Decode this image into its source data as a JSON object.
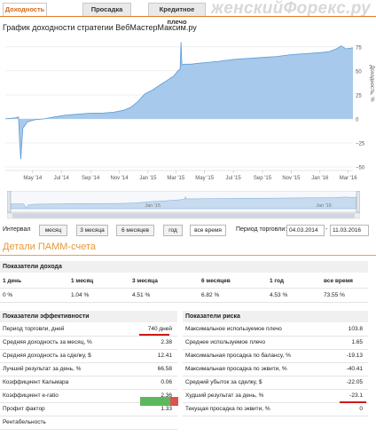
{
  "tabs": [
    {
      "label": "Доходность",
      "active": true
    },
    {
      "label": "Просадка",
      "active": false
    },
    {
      "label": "Кредитное плечо",
      "active": false
    }
  ],
  "watermark": "женскийФорекс.ру",
  "chart": {
    "title": "График доходности стратегии ВебМастерМаксим.ру",
    "y_axis_label": "Доходность, %",
    "y_ticks": [
      "75",
      "50",
      "25",
      "0",
      "−25",
      "−50"
    ],
    "x_ticks": [
      "May '14",
      "Jul '14",
      "Sep '14",
      "Nov '14",
      "Jan '15",
      "Mar '15",
      "May '15",
      "Jul '15",
      "Sep '15",
      "Nov '15",
      "Jan '16",
      "Mar '16"
    ],
    "navigator_ticks": [
      "Jan '15",
      "Jan '16"
    ],
    "fill_color": "#9cc3ea",
    "line_color": "#5b9bd5"
  },
  "chart_data": {
    "type": "area",
    "title": "График доходности стратегии ВебМастерМаксим.ру",
    "xlabel": "",
    "ylabel": "Доходность, %",
    "ylim": [
      -50,
      85
    ],
    "xlim": [
      "2014-03-04",
      "2016-03-11"
    ],
    "grid": true,
    "x": [
      "2014-03-04",
      "2014-03-25",
      "2014-04-01",
      "2014-04-04",
      "2014-04-06",
      "2014-04-10",
      "2014-04-20",
      "2014-05-05",
      "2014-05-25",
      "2014-06-15",
      "2014-07-10",
      "2014-08-05",
      "2014-09-01",
      "2014-09-25",
      "2014-10-20",
      "2014-11-10",
      "2014-11-25",
      "2014-12-10",
      "2014-12-25",
      "2015-01-10",
      "2015-01-25",
      "2015-02-10",
      "2015-02-25",
      "2015-03-05",
      "2015-03-10",
      "2015-03-12",
      "2015-03-14",
      "2015-03-18",
      "2015-04-01",
      "2015-04-20",
      "2015-05-10",
      "2015-06-01",
      "2015-07-01",
      "2015-08-01",
      "2015-09-01",
      "2015-10-01",
      "2015-11-01",
      "2015-12-01",
      "2016-01-01",
      "2016-01-20",
      "2016-02-05",
      "2016-02-15",
      "2016-02-25",
      "2016-03-11"
    ],
    "series": [
      {
        "values": [
          0,
          1,
          2,
          -30,
          -42,
          -10,
          -3,
          -1,
          0,
          2,
          4,
          5,
          6,
          6,
          7,
          9,
          12,
          18,
          26,
          30,
          35,
          40,
          45,
          50,
          52,
          80,
          56,
          57,
          57,
          58,
          59,
          60,
          62,
          63,
          64,
          65,
          67,
          68,
          69,
          70,
          73,
          76,
          73,
          74
        ]
      }
    ]
  },
  "interval": {
    "label": "Интервал",
    "buttons": [
      {
        "label": "месяц",
        "selected": false
      },
      {
        "label": "3 месяца",
        "selected": false
      },
      {
        "label": "6 месяцев",
        "selected": false
      },
      {
        "label": "год",
        "selected": false
      },
      {
        "label": "все время",
        "selected": true
      }
    ],
    "period_label": "Период торговли:",
    "date_from": "04.03.2014",
    "date_to": "11.03.2016",
    "separator": "-"
  },
  "pamm_title": "Детали ПАММ-счета",
  "yield": {
    "header": "Показатели дохода",
    "columns": [
      "1 день",
      "1 месяц",
      "3 месяца",
      "6 месяцев",
      "1 год",
      "все время"
    ],
    "values": [
      "0 %",
      "1.04 %",
      "4.51 %",
      "6.82 %",
      "4.53 %",
      "73.55 %"
    ]
  },
  "efficiency": {
    "header": "Показатели эффективности",
    "rows": [
      {
        "label": "Период торговли, дней",
        "value": "740 дней"
      },
      {
        "label": "Средняя доходность за месяц, %",
        "value": "2.38"
      },
      {
        "label": "Средняя доходность за сделку, $",
        "value": "12.41"
      },
      {
        "label": "Лучший результат за день, %",
        "value": "66.58"
      },
      {
        "label": "Коэффициент Кальмара",
        "value": "0.06"
      },
      {
        "label": "Коэффициент e-ratio",
        "value": "2.36"
      },
      {
        "label": "Профит фактор",
        "value": "1.33"
      },
      {
        "label": "Рентабельность",
        "value": ""
      }
    ],
    "profitability_colors": [
      "#5cb85c",
      "#d9534f"
    ]
  },
  "risk": {
    "header": "Показатели риска",
    "rows": [
      {
        "label": "Максимальное используемое плечо",
        "value": "103.8"
      },
      {
        "label": "Среднее используемое плечо",
        "value": "1.65"
      },
      {
        "label": "Максимальная просадка по балансу, %",
        "value": "-19.13"
      },
      {
        "label": "Максимальная просадка по эквити, %",
        "value": "-40.41"
      },
      {
        "label": "Средний убыток за сделку, $",
        "value": "-22.05"
      },
      {
        "label": "Худший результат за день, %",
        "value": "-23.1"
      },
      {
        "label": "Текущая просадка по эквити, %",
        "value": "0"
      }
    ]
  }
}
